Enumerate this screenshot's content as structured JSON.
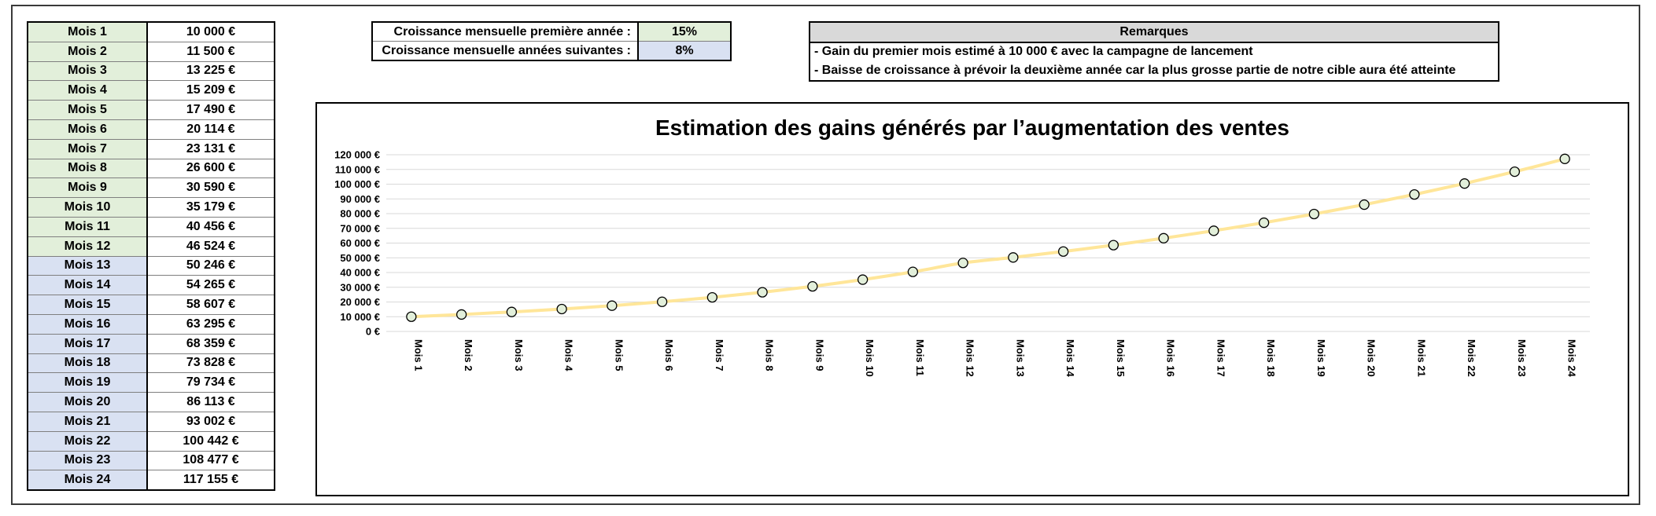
{
  "months": [
    {
      "label": "Mois 1",
      "value": "10 000 €"
    },
    {
      "label": "Mois 2",
      "value": "11 500 €"
    },
    {
      "label": "Mois 3",
      "value": "13 225 €"
    },
    {
      "label": "Mois 4",
      "value": "15 209 €"
    },
    {
      "label": "Mois 5",
      "value": "17 490 €"
    },
    {
      "label": "Mois 6",
      "value": "20 114 €"
    },
    {
      "label": "Mois 7",
      "value": "23 131 €"
    },
    {
      "label": "Mois 8",
      "value": "26 600 €"
    },
    {
      "label": "Mois 9",
      "value": "30 590 €"
    },
    {
      "label": "Mois 10",
      "value": "35 179 €"
    },
    {
      "label": "Mois 11",
      "value": "40 456 €"
    },
    {
      "label": "Mois 12",
      "value": "46 524 €"
    },
    {
      "label": "Mois 13",
      "value": "50 246 €"
    },
    {
      "label": "Mois 14",
      "value": "54 265 €"
    },
    {
      "label": "Mois 15",
      "value": "58 607 €"
    },
    {
      "label": "Mois 16",
      "value": "63 295 €"
    },
    {
      "label": "Mois 17",
      "value": "68 359 €"
    },
    {
      "label": "Mois 18",
      "value": "73 828 €"
    },
    {
      "label": "Mois 19",
      "value": "79 734 €"
    },
    {
      "label": "Mois 20",
      "value": "86 113 €"
    },
    {
      "label": "Mois 21",
      "value": "93 002 €"
    },
    {
      "label": "Mois 22",
      "value": "100 442 €"
    },
    {
      "label": "Mois 23",
      "value": "108 477 €"
    },
    {
      "label": "Mois 24",
      "value": "117 155 €"
    }
  ],
  "growth": {
    "first_year_label": "Croissance mensuelle première année :",
    "first_year_value": "15%",
    "next_years_label": "Croissance mensuelle années suivantes :",
    "next_years_value": "8%"
  },
  "remarks": {
    "header": "Remarques",
    "items": [
      "- Gain du premier mois estimé à 10 000 € avec la campagne de lancement",
      "- Baisse de croissance à prévoir la deuxième année car la plus grosse partie de notre cible aura été atteinte"
    ]
  },
  "colors": {
    "year1_fill": "#e2efda",
    "year2_fill": "#d9e1f2",
    "line": "#ffe699",
    "marker_fill": "#e2efda",
    "marker_stroke": "#000000",
    "grid": "#d9d9d9"
  },
  "chart_data": {
    "type": "line",
    "title": "Estimation des gains générés par l’augmentation des ventes",
    "categories": [
      "Mois 1",
      "Mois 2",
      "Mois 3",
      "Mois 4",
      "Mois 5",
      "Mois 6",
      "Mois 7",
      "Mois 8",
      "Mois 9",
      "Mois 10",
      "Mois 11",
      "Mois 12",
      "Mois 13",
      "Mois 14",
      "Mois 15",
      "Mois 16",
      "Mois 17",
      "Mois 18",
      "Mois 19",
      "Mois 20",
      "Mois 21",
      "Mois 22",
      "Mois 23",
      "Mois 24"
    ],
    "series": [
      {
        "values": [
          10000,
          11500,
          13225,
          15209,
          17490,
          20114,
          23131,
          26600,
          30590,
          35179,
          40456,
          46524,
          50246,
          54265,
          58607,
          63295,
          68359,
          73828,
          79734,
          86113,
          93002,
          100442,
          108477,
          117155
        ]
      }
    ],
    "ylim": [
      0,
      120000
    ],
    "yticks": [
      0,
      10000,
      20000,
      30000,
      40000,
      50000,
      60000,
      70000,
      80000,
      90000,
      100000,
      110000,
      120000
    ],
    "ytick_labels": [
      "0 €",
      "10 000 €",
      "20 000 €",
      "30 000 €",
      "40 000 €",
      "50 000 €",
      "60 000 €",
      "70 000 €",
      "80 000 €",
      "90 000 €",
      "100 000 €",
      "110 000 €",
      "120 000 €"
    ],
    "grid": true,
    "legend": "none"
  }
}
